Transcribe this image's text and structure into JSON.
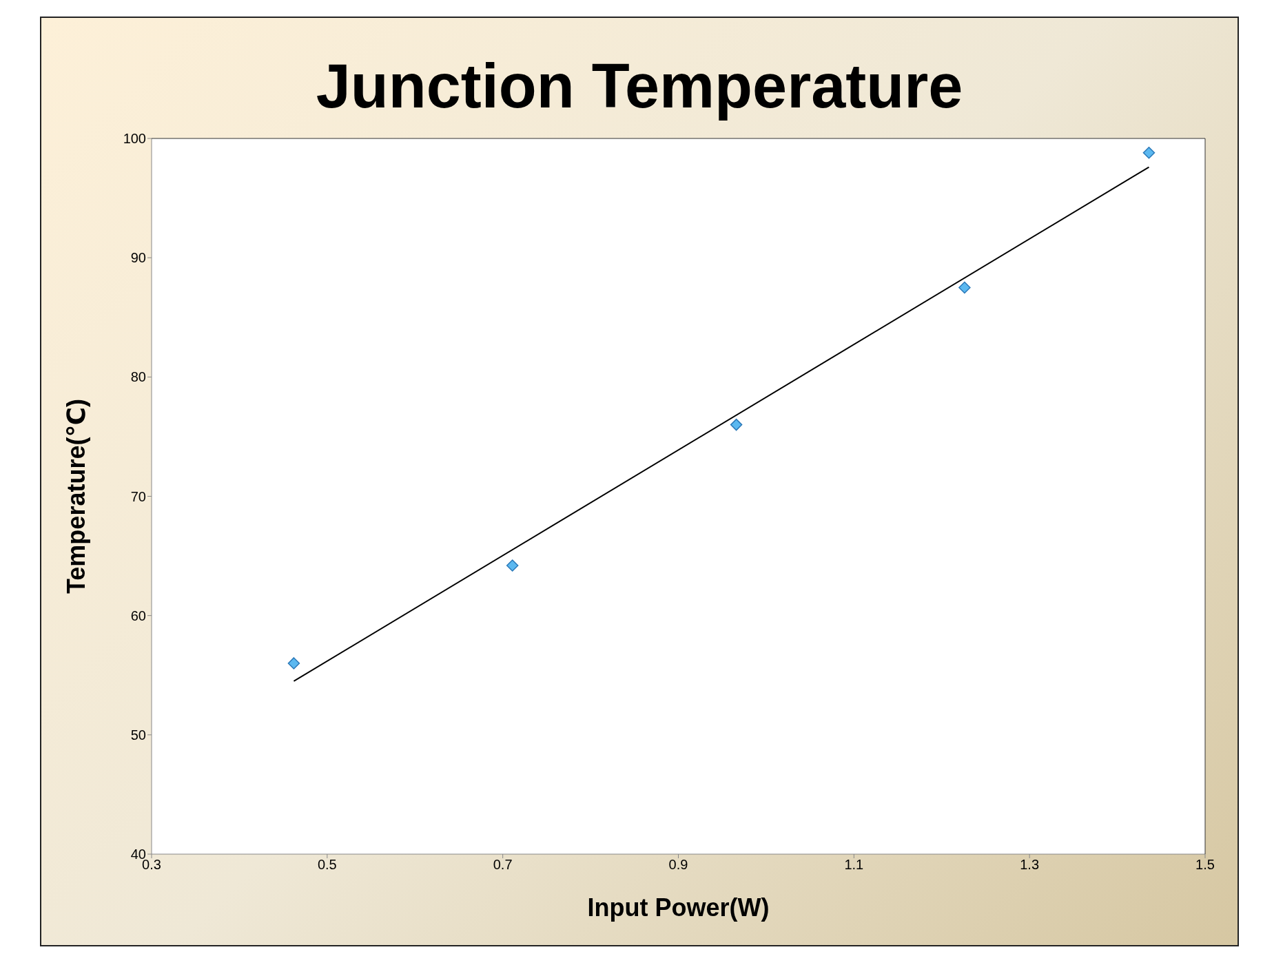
{
  "chart_data": {
    "type": "scatter",
    "title": "Junction Temperature",
    "xlabel": "Input Power(W)",
    "ylabel": "Temperature(℃)",
    "xlim": [
      0.3,
      1.5
    ],
    "xticks": [
      0.3,
      0.5,
      0.7,
      0.9,
      1.1,
      1.3,
      1.5
    ],
    "ylim": [
      40,
      100
    ],
    "yticks": [
      40,
      50,
      60,
      70,
      80,
      90,
      100
    ],
    "grid": false,
    "marker": "diamond",
    "series": [
      {
        "color": "#5bb8f0",
        "x": [
          0.462,
          0.711,
          0.966,
          1.226,
          1.436
        ],
        "values": [
          56.0,
          64.2,
          76.0,
          87.5,
          98.8
        ]
      },
      {
        "type": "line",
        "color": "#000000",
        "line_style": "solid",
        "marker": "none",
        "x": [
          0.462,
          1.436
        ],
        "values": [
          54.5,
          97.6
        ]
      }
    ]
  }
}
